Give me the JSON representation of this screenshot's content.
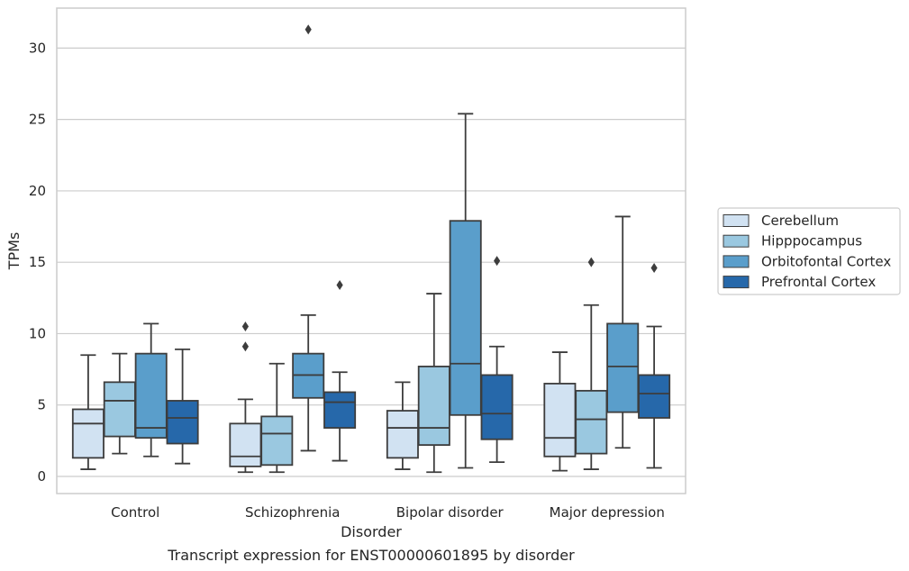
{
  "chart_data": {
    "type": "box",
    "title": "",
    "caption": "Transcript expression for ENST00000601895 by disorder",
    "xlabel": "Disorder",
    "ylabel": "TPMs",
    "ylim": [
      -1.2,
      32.8
    ],
    "yticks": [
      0,
      5,
      10,
      15,
      20,
      25,
      30
    ],
    "grid": true,
    "legend_position": "right",
    "categories": [
      "Control",
      "Schizophrenia",
      "Bipolar disorder",
      "Major depression"
    ],
    "series": [
      {
        "name": "Cerebellum",
        "color": "#d1e2f2",
        "boxes": [
          {
            "whislo": 0.5,
            "q1": 1.3,
            "med": 3.7,
            "q3": 4.7,
            "whishi": 8.5,
            "fliers": []
          },
          {
            "whislo": 0.3,
            "q1": 0.7,
            "med": 1.4,
            "q3": 3.7,
            "whishi": 5.4,
            "fliers": [
              9.1,
              10.5
            ]
          },
          {
            "whislo": 0.5,
            "q1": 1.3,
            "med": 3.4,
            "q3": 4.6,
            "whishi": 6.6,
            "fliers": []
          },
          {
            "whislo": 0.4,
            "q1": 1.4,
            "med": 2.7,
            "q3": 6.5,
            "whishi": 8.7,
            "fliers": []
          }
        ]
      },
      {
        "name": "Hipppocampus",
        "color": "#9ac8e0",
        "boxes": [
          {
            "whislo": 1.6,
            "q1": 2.8,
            "med": 5.3,
            "q3": 6.6,
            "whishi": 8.6,
            "fliers": []
          },
          {
            "whislo": 0.3,
            "q1": 0.8,
            "med": 3.0,
            "q3": 4.2,
            "whishi": 7.9,
            "fliers": []
          },
          {
            "whislo": 0.3,
            "q1": 2.2,
            "med": 3.4,
            "q3": 7.7,
            "whishi": 12.8,
            "fliers": []
          },
          {
            "whislo": 0.5,
            "q1": 1.6,
            "med": 4.0,
            "q3": 6.0,
            "whishi": 12.0,
            "fliers": [
              15.0
            ]
          }
        ]
      },
      {
        "name": "Orbitofontal Cortex",
        "color": "#5a9ecb",
        "boxes": [
          {
            "whislo": 1.4,
            "q1": 2.7,
            "med": 3.4,
            "q3": 8.6,
            "whishi": 10.7,
            "fliers": []
          },
          {
            "whislo": 1.8,
            "q1": 5.5,
            "med": 7.1,
            "q3": 8.6,
            "whishi": 11.3,
            "fliers": [
              31.3
            ]
          },
          {
            "whislo": 0.6,
            "q1": 4.3,
            "med": 7.9,
            "q3": 17.9,
            "whishi": 25.4,
            "fliers": []
          },
          {
            "whislo": 2.0,
            "q1": 4.5,
            "med": 7.7,
            "q3": 10.7,
            "whishi": 18.2,
            "fliers": []
          }
        ]
      },
      {
        "name": "Prefrontal Cortex",
        "color": "#2668aa",
        "boxes": [
          {
            "whislo": 0.9,
            "q1": 2.3,
            "med": 4.1,
            "q3": 5.3,
            "whishi": 8.9,
            "fliers": []
          },
          {
            "whislo": 1.1,
            "q1": 3.4,
            "med": 5.2,
            "q3": 5.9,
            "whishi": 7.3,
            "fliers": [
              13.4
            ]
          },
          {
            "whislo": 1.0,
            "q1": 2.6,
            "med": 4.4,
            "q3": 7.1,
            "whishi": 9.1,
            "fliers": [
              15.1
            ]
          },
          {
            "whislo": 0.6,
            "q1": 4.1,
            "med": 5.8,
            "q3": 7.1,
            "whishi": 10.5,
            "fliers": [
              14.6
            ]
          }
        ]
      }
    ]
  }
}
